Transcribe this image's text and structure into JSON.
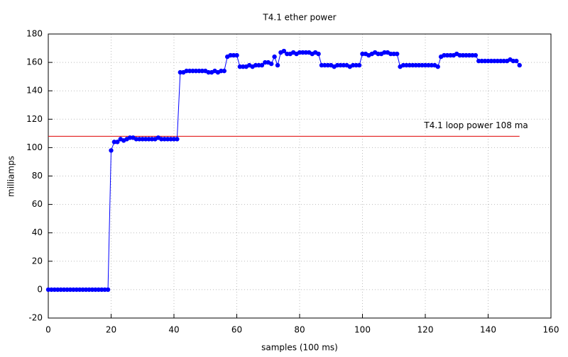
{
  "chart_data": {
    "type": "line",
    "title": "T4.1 ether power",
    "x_label": "samples (100 ms)",
    "y_label": "milliamps",
    "x": [
      0,
      1,
      2,
      3,
      4,
      5,
      6,
      7,
      8,
      9,
      10,
      11,
      12,
      13,
      14,
      15,
      16,
      17,
      18,
      19,
      20,
      21,
      22,
      23,
      24,
      25,
      26,
      27,
      28,
      29,
      30,
      31,
      32,
      33,
      34,
      35,
      36,
      37,
      38,
      39,
      40,
      41,
      42,
      43,
      44,
      45,
      46,
      47,
      48,
      49,
      50,
      51,
      52,
      53,
      54,
      55,
      56,
      57,
      58,
      59,
      60,
      61,
      62,
      63,
      64,
      65,
      66,
      67,
      68,
      69,
      70,
      71,
      72,
      73,
      74,
      75,
      76,
      77,
      78,
      79,
      80,
      81,
      82,
      83,
      84,
      85,
      86,
      87,
      88,
      89,
      90,
      91,
      92,
      93,
      94,
      95,
      96,
      97,
      98,
      99,
      100,
      101,
      102,
      103,
      104,
      105,
      106,
      107,
      108,
      109,
      110,
      111,
      112,
      113,
      114,
      115,
      116,
      117,
      118,
      119,
      120,
      121,
      122,
      123,
      124,
      125,
      126,
      127,
      128,
      129,
      130,
      131,
      132,
      133,
      134,
      135,
      136,
      137,
      138,
      139,
      140,
      141,
      142,
      143,
      144,
      145,
      146,
      147,
      148,
      149,
      150
    ],
    "values": [
      0,
      0,
      0,
      0,
      0,
      0,
      0,
      0,
      0,
      0,
      0,
      0,
      0,
      0,
      0,
      0,
      0,
      0,
      0,
      0,
      98,
      104,
      104,
      106,
      105,
      106,
      107,
      107,
      106,
      106,
      106,
      106,
      106,
      106,
      106,
      107,
      106,
      106,
      106,
      106,
      106,
      106,
      153,
      153,
      154,
      154,
      154,
      154,
      154,
      154,
      154,
      153,
      153,
      154,
      153,
      154,
      154,
      164,
      165,
      165,
      165,
      157,
      157,
      157,
      158,
      157,
      158,
      158,
      158,
      160,
      160,
      159,
      164,
      158,
      167,
      168,
      166,
      166,
      167,
      166,
      167,
      167,
      167,
      167,
      166,
      167,
      166,
      158,
      158,
      158,
      158,
      157,
      158,
      158,
      158,
      158,
      157,
      158,
      158,
      158,
      166,
      166,
      165,
      166,
      167,
      166,
      166,
      167,
      167,
      166,
      166,
      166,
      157,
      158,
      158,
      158,
      158,
      158,
      158,
      158,
      158,
      158,
      158,
      158,
      157,
      164,
      165,
      165,
      165,
      165,
      166,
      165,
      165,
      165,
      165,
      165,
      165,
      161,
      161,
      161,
      161,
      161,
      161,
      161,
      161,
      161,
      161,
      162,
      161,
      161,
      158
    ],
    "color": "#0000ff",
    "hline": {
      "value": 108,
      "label": "T4.1 loop power 108 ma",
      "color": "#e00000"
    },
    "xlim": [
      0,
      160
    ],
    "xticks": [
      0,
      20,
      40,
      60,
      80,
      100,
      120,
      140,
      160
    ],
    "ylim": [
      -20,
      180
    ],
    "yticks": [
      -20,
      0,
      20,
      40,
      60,
      80,
      100,
      120,
      140,
      160,
      180
    ],
    "grid": true
  }
}
